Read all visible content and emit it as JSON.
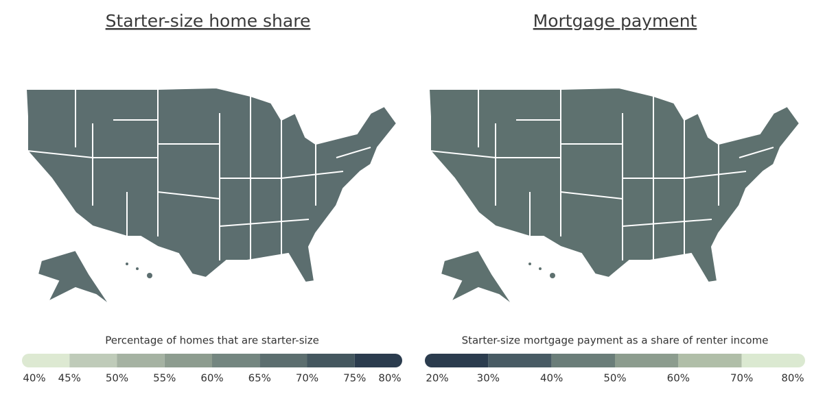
{
  "maps": [
    {
      "title": "Starter-size home share",
      "legend": {
        "title": "Percentage of homes that are starter-size",
        "colors": [
          "#dde9d2",
          "#bfcbb9",
          "#a5b2a2",
          "#8d9c8f",
          "#748680",
          "#5c6e6f",
          "#44575f",
          "#2b3c4e"
        ],
        "ticks": [
          {
            "value": 40,
            "label": "40%"
          },
          {
            "value": 45,
            "label": "45%"
          },
          {
            "value": 50,
            "label": "50%"
          },
          {
            "value": 55,
            "label": "55%"
          },
          {
            "value": 60,
            "label": "60%"
          },
          {
            "value": 65,
            "label": "65%"
          },
          {
            "value": 70,
            "label": "70%"
          },
          {
            "value": 75,
            "label": "75%"
          },
          {
            "value": 80,
            "label": "80%"
          }
        ]
      }
    },
    {
      "title": "Mortgage payment",
      "legend": {
        "title": "Starter-size mortgage payment as a share of renter income",
        "colors": [
          "#2b3c4e",
          "#485b64",
          "#6a7d79",
          "#8c9c8e",
          "#b0bea8",
          "#dbe9d1"
        ],
        "ticks": [
          {
            "value": 20,
            "label": "20%"
          },
          {
            "value": 30,
            "label": "30%"
          },
          {
            "value": 40,
            "label": "40%"
          },
          {
            "value": 50,
            "label": "50%"
          },
          {
            "value": 60,
            "label": "60%"
          },
          {
            "value": 70,
            "label": "70%"
          },
          {
            "value": 80,
            "label": "80%"
          }
        ]
      }
    }
  ]
}
